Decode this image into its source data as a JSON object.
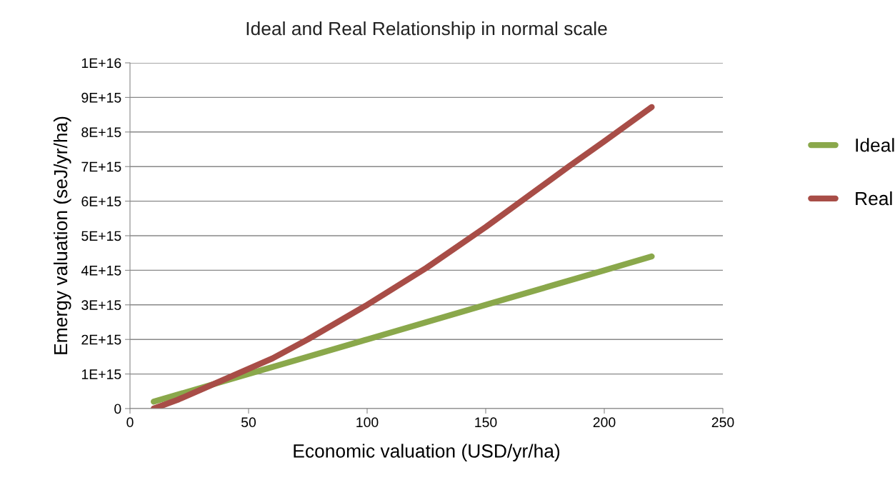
{
  "chart_data": {
    "type": "line",
    "title": "Ideal and Real Relationship in normal scale",
    "xlabel": "Economic valuation (USD/yr/ha)",
    "ylabel": "Emergy valuation (seJ/yr/ha)",
    "series": [
      {
        "name": "Ideal",
        "color": "#8aa84b",
        "x": [
          10,
          50,
          100,
          150,
          200,
          220
        ],
        "values": [
          200000000000000.0,
          1000000000000000.0,
          2000000000000000.0,
          3000000000000000.0,
          4000000000000000.0,
          4400000000000000.0
        ]
      },
      {
        "name": "Real",
        "color": "#a84d47",
        "x": [
          10,
          20,
          30,
          45,
          60,
          75,
          100,
          125,
          150,
          185,
          200,
          220
        ],
        "values": [
          0,
          250000000000000.0,
          550000000000000.0,
          1000000000000000.0,
          1450000000000000.0,
          2000000000000000.0,
          3000000000000000.0,
          4070000000000000.0,
          5250000000000000.0,
          7000000000000000.0,
          7730000000000000.0,
          8720000000000000.0
        ]
      }
    ],
    "xlim": [
      0,
      250
    ],
    "xticks": [
      0,
      50,
      100,
      150,
      200,
      250
    ],
    "ylim": [
      0,
      1e+16
    ],
    "yticks": [
      0,
      {
        "value": 1000000000000000.0,
        "label": "1E+15"
      },
      {
        "value": 2000000000000000.0,
        "label": "2E+15"
      },
      {
        "value": 3000000000000000.0,
        "label": "3E+15"
      },
      {
        "value": 4000000000000000.0,
        "label": "4E+15"
      },
      {
        "value": 5000000000000000.0,
        "label": "5E+15"
      },
      {
        "value": 6000000000000000.0,
        "label": "6E+15"
      },
      {
        "value": 7000000000000000.0,
        "label": "7E+15"
      },
      {
        "value": 8000000000000000.0,
        "label": "8E+15"
      },
      {
        "value": 9000000000000000.0,
        "label": "9E+15"
      },
      {
        "value": 1e+16,
        "label": "1E+16"
      }
    ],
    "grid": "y",
    "legend": "right",
    "marker": "none",
    "line_style": "solid"
  }
}
